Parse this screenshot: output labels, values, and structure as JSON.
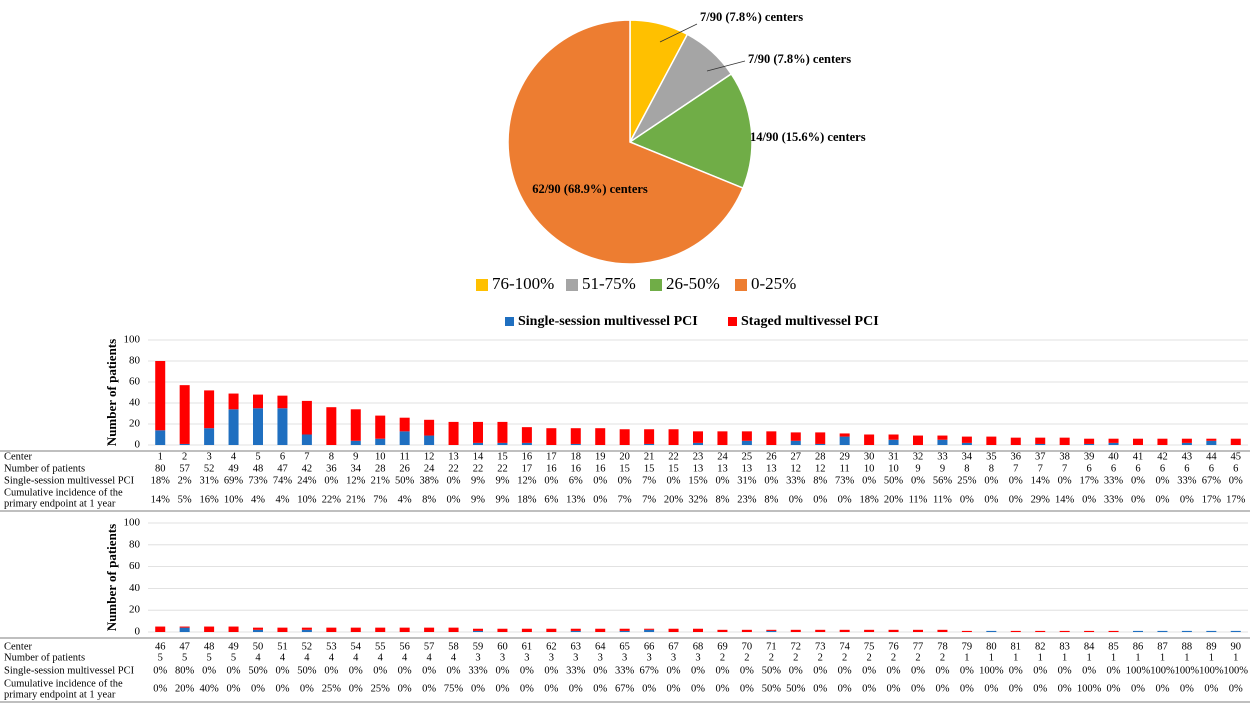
{
  "chart_data": [
    {
      "type": "pie",
      "categories": [
        "76-100%",
        "51-75%",
        "26-50%",
        "0-25%"
      ],
      "values": [
        7.8,
        7.8,
        15.6,
        68.9
      ],
      "value_labels": [
        "7/90 (7.8%) centers",
        "7/90 (7.8%) centers",
        "14/90 (15.6%) centers",
        "62/90 (68.9%) centers"
      ],
      "colors": [
        "#ffc000",
        "#a5a5a5",
        "#70ad47",
        "#ed7d31"
      ],
      "legend": "bottom"
    },
    {
      "type": "bar",
      "stacked": true,
      "grid": true,
      "y_label": "Number of patients",
      "categories": [
        "1",
        "2",
        "3",
        "4",
        "5",
        "6",
        "7",
        "8",
        "9",
        "10",
        "11",
        "12",
        "13",
        "14",
        "15",
        "16",
        "17",
        "18",
        "19",
        "20",
        "21",
        "22",
        "23",
        "24",
        "25",
        "26",
        "27",
        "28",
        "29",
        "30",
        "31",
        "32",
        "33",
        "34",
        "35",
        "36",
        "37",
        "38",
        "39",
        "40",
        "41",
        "42",
        "43",
        "44",
        "45"
      ],
      "series": [
        {
          "name": "Single-session multivessel PCI",
          "color": "#1f6fc0",
          "values": [
            14,
            1,
            16,
            34,
            35,
            35,
            10,
            0,
            4,
            6,
            13,
            9,
            0,
            2,
            2,
            2,
            0,
            1,
            0,
            0,
            1,
            0,
            2,
            0,
            4,
            0,
            4,
            1,
            8,
            0,
            5,
            0,
            5,
            2,
            0,
            0,
            1,
            0,
            1,
            2,
            0,
            0,
            2,
            4,
            0
          ]
        },
        {
          "name": "Staged multivessel PCI",
          "color": "#ff0000",
          "values": [
            66,
            56,
            36,
            15,
            13,
            12,
            32,
            36,
            30,
            22,
            13,
            15,
            22,
            20,
            20,
            15,
            16,
            15,
            16,
            15,
            14,
            15,
            11,
            13,
            9,
            13,
            8,
            11,
            3,
            10,
            5,
            9,
            4,
            6,
            8,
            7,
            6,
            7,
            5,
            4,
            6,
            6,
            4,
            2,
            6
          ]
        }
      ],
      "ylim": [
        0,
        100
      ],
      "yticks": [
        0,
        20,
        40,
        60,
        80,
        100
      ],
      "legend": "top",
      "table": {
        "row_labels": [
          "Center",
          "Number of patients",
          "Single-session multivessel PCI",
          [
            "Cumulative incidence of the",
            "primary endpoint at 1 year"
          ]
        ],
        "rows": [
          [
            80,
            57,
            52,
            49,
            48,
            47,
            42,
            36,
            34,
            28,
            26,
            24,
            22,
            22,
            22,
            17,
            16,
            16,
            16,
            15,
            15,
            15,
            13,
            13,
            13,
            13,
            12,
            12,
            11,
            10,
            10,
            9,
            9,
            8,
            8,
            7,
            7,
            7,
            6,
            6,
            6,
            6,
            6,
            6,
            6
          ],
          [
            "18%",
            "2%",
            "31%",
            "69%",
            "73%",
            "74%",
            "24%",
            "0%",
            "12%",
            "21%",
            "50%",
            "38%",
            "0%",
            "9%",
            "9%",
            "12%",
            "0%",
            "6%",
            "0%",
            "0%",
            "7%",
            "0%",
            "15%",
            "0%",
            "31%",
            "0%",
            "33%",
            "8%",
            "73%",
            "0%",
            "50%",
            "0%",
            "56%",
            "25%",
            "0%",
            "0%",
            "14%",
            "0%",
            "17%",
            "33%",
            "0%",
            "0%",
            "33%",
            "67%",
            "0%"
          ],
          [
            "14%",
            "5%",
            "16%",
            "10%",
            "4%",
            "4%",
            "10%",
            "22%",
            "21%",
            "7%",
            "4%",
            "8%",
            "0%",
            "9%",
            "9%",
            "18%",
            "6%",
            "13%",
            "0%",
            "7%",
            "7%",
            "20%",
            "32%",
            "8%",
            "23%",
            "8%",
            "0%",
            "0%",
            "0%",
            "18%",
            "20%",
            "11%",
            "11%",
            "0%",
            "0%",
            "0%",
            "29%",
            "14%",
            "0%",
            "33%",
            "0%",
            "0%",
            "0%",
            "17%",
            "17%"
          ]
        ]
      }
    },
    {
      "type": "bar",
      "stacked": true,
      "grid": true,
      "y_label": "Number of patients",
      "categories": [
        "46",
        "47",
        "48",
        "49",
        "50",
        "51",
        "52",
        "53",
        "54",
        "55",
        "56",
        "57",
        "58",
        "59",
        "60",
        "61",
        "62",
        "63",
        "64",
        "65",
        "66",
        "67",
        "68",
        "69",
        "70",
        "71",
        "72",
        "73",
        "74",
        "75",
        "76",
        "77",
        "78",
        "79",
        "80",
        "81",
        "82",
        "83",
        "84",
        "85",
        "86",
        "87",
        "88",
        "89",
        "90"
      ],
      "series": [
        {
          "color": "#1f6fc0",
          "values": [
            0,
            4,
            0,
            0,
            2,
            0,
            2,
            0,
            0,
            0,
            0,
            0,
            0,
            1,
            0,
            0,
            0,
            1,
            0,
            1,
            2,
            0,
            0,
            0,
            0,
            1,
            0,
            0,
            0,
            0,
            0,
            0,
            0,
            0,
            1,
            0,
            0,
            0,
            0,
            0,
            1,
            1,
            1,
            1,
            1
          ]
        },
        {
          "color": "#ff0000",
          "values": [
            5,
            1,
            5,
            5,
            2,
            4,
            2,
            4,
            4,
            4,
            4,
            4,
            4,
            2,
            3,
            3,
            3,
            2,
            3,
            2,
            1,
            3,
            3,
            2,
            2,
            1,
            2,
            2,
            2,
            2,
            2,
            2,
            2,
            1,
            0,
            1,
            1,
            1,
            1,
            1,
            0,
            0,
            0,
            0,
            0
          ]
        }
      ],
      "ylim": [
        0,
        100
      ],
      "yticks": [
        0,
        20,
        40,
        60,
        80,
        100
      ],
      "table": {
        "row_labels": [
          "Center",
          "Number of patients",
          "Single-session multivessel PCI",
          [
            "Cumulative incidence of the",
            "primary endpoint at 1 year"
          ]
        ],
        "rows": [
          [
            5,
            5,
            5,
            5,
            4,
            4,
            4,
            4,
            4,
            4,
            4,
            4,
            4,
            3,
            3,
            3,
            3,
            3,
            3,
            3,
            3,
            3,
            3,
            2,
            2,
            2,
            2,
            2,
            2,
            2,
            2,
            2,
            2,
            1,
            1,
            1,
            1,
            1,
            1,
            1,
            1,
            1,
            1,
            1,
            1
          ],
          [
            "0%",
            "80%",
            "0%",
            "0%",
            "50%",
            "0%",
            "50%",
            "0%",
            "0%",
            "0%",
            "0%",
            "0%",
            "0%",
            "33%",
            "0%",
            "0%",
            "0%",
            "33%",
            "0%",
            "33%",
            "67%",
            "0%",
            "0%",
            "0%",
            "0%",
            "50%",
            "0%",
            "0%",
            "0%",
            "0%",
            "0%",
            "0%",
            "0%",
            "0%",
            "100%",
            "0%",
            "0%",
            "0%",
            "0%",
            "0%",
            "100%",
            "100%",
            "100%",
            "100%",
            "100%"
          ],
          [
            "0%",
            "20%",
            "40%",
            "0%",
            "0%",
            "0%",
            "0%",
            "25%",
            "0%",
            "25%",
            "0%",
            "0%",
            "75%",
            "0%",
            "0%",
            "0%",
            "0%",
            "0%",
            "0%",
            "67%",
            "0%",
            "0%",
            "0%",
            "0%",
            "0%",
            "50%",
            "50%",
            "0%",
            "0%",
            "0%",
            "0%",
            "0%",
            "0%",
            "0%",
            "0%",
            "0%",
            "0%",
            "0%",
            "100%",
            "0%",
            "0%",
            "0%",
            "0%",
            "0%",
            "0%"
          ]
        ]
      }
    }
  ]
}
